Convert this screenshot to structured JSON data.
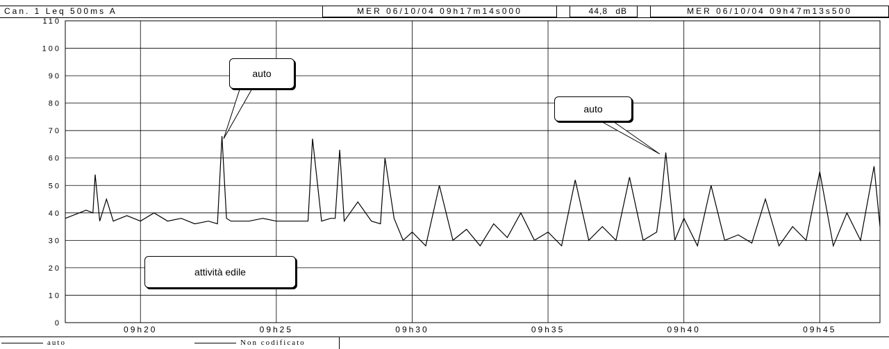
{
  "header": {
    "channel": "Can. 1  Leq 500ms  A",
    "start_time": "MER 06/10/04 09h17m14s000",
    "level_value": "44,8",
    "level_unit": "dB",
    "end_time": "MER 06/10/04 09h47m13s500"
  },
  "legend": [
    {
      "label": "auto"
    },
    {
      "label": "Non codificato"
    }
  ],
  "annotations": [
    {
      "label": "auto"
    },
    {
      "label": "auto"
    },
    {
      "label": "attività edile"
    }
  ],
  "chart_data": {
    "type": "line",
    "title": "",
    "xlabel": "",
    "ylabel": "",
    "ylim": [
      0,
      110
    ],
    "yticks": [
      0,
      10,
      20,
      30,
      40,
      50,
      60,
      70,
      80,
      90,
      100,
      110
    ],
    "xlim": [
      "09h17m14s",
      "09h47m13s"
    ],
    "xtick_labels": [
      "09h20",
      "09h25",
      "09h30",
      "09h35",
      "09h40",
      "09h45"
    ],
    "grid": true,
    "series": [
      {
        "x": [
          "09h17m14s",
          "09h17m45s",
          "09h18m00s",
          "09h18m15s",
          "09h18m20s",
          "09h18m30s",
          "09h18m45s",
          "09h19m00s",
          "09h19m15s",
          "09h19m30s",
          "09h20m00s",
          "09h20m30s",
          "09h21m00s",
          "09h21m30s",
          "09h22m00s",
          "09h22m30s",
          "09h22m50s",
          "09h23m00s",
          "09h23m10s",
          "09h23m20s",
          "09h23m40s",
          "09h24m00s",
          "09h24m30s",
          "09h25m00s",
          "09h25m30s",
          "09h26m00s",
          "09h26m10s",
          "09h26m20s",
          "09h26m40s",
          "09h27m00s",
          "09h27m10s",
          "09h27m20s",
          "09h27m30s",
          "09h28m00s",
          "09h28m30s",
          "09h28m50s",
          "09h29m00s",
          "09h29m20s",
          "09h29m40s",
          "09h30m00s",
          "09h30m30s",
          "09h31m00s",
          "09h31m30s",
          "09h32m00s",
          "09h32m30s",
          "09h33m00s",
          "09h33m30s",
          "09h34m00s",
          "09h34m30s",
          "09h35m00s",
          "09h35m30s",
          "09h36m00s",
          "09h36m30s",
          "09h37m00s",
          "09h37m30s",
          "09h38m00s",
          "09h38m30s",
          "09h39m00s",
          "09h39m10s",
          "09h39m20s",
          "09h39m40s",
          "09h40m00s",
          "09h40m30s",
          "09h41m00s",
          "09h41m30s",
          "09h42m00s",
          "09h42m30s",
          "09h43m00s",
          "09h43m30s",
          "09h44m00s",
          "09h44m30s",
          "09h45m00s",
          "09h45m30s",
          "09h46m00s",
          "09h46m30s",
          "09h47m00s",
          "09h47m13s"
        ],
        "y": [
          38,
          40,
          41,
          40,
          54,
          37,
          45,
          37,
          38,
          39,
          37,
          40,
          37,
          38,
          36,
          37,
          36,
          68,
          38,
          37,
          37,
          37,
          38,
          37,
          37,
          37,
          37,
          67,
          37,
          38,
          38,
          63,
          37,
          44,
          37,
          36,
          60,
          38,
          30,
          33,
          28,
          50,
          30,
          34,
          28,
          36,
          31,
          40,
          30,
          33,
          28,
          52,
          30,
          35,
          30,
          53,
          30,
          33,
          45,
          62,
          30,
          38,
          28,
          50,
          30,
          32,
          29,
          45,
          28,
          35,
          30,
          55,
          28,
          40,
          30,
          57,
          35
        ]
      }
    ]
  }
}
